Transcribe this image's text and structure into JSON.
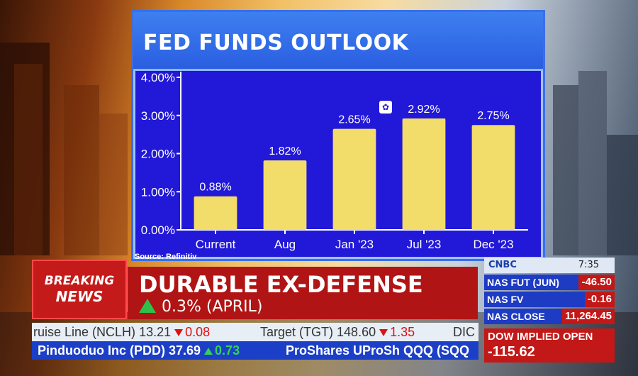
{
  "chart_data": {
    "type": "bar",
    "title": "FED FUNDS OUTLOOK",
    "categories": [
      "Current",
      "Aug",
      "Jan '23",
      "Jul '23",
      "Dec '23"
    ],
    "values": [
      0.88,
      1.82,
      2.65,
      2.92,
      2.75
    ],
    "value_labels": [
      "0.88%",
      "1.82%",
      "2.65%",
      "2.92%",
      "2.75%"
    ],
    "y_ticks": [
      0,
      1,
      2,
      3,
      4
    ],
    "y_tick_labels": [
      "0.00%",
      "1.00%",
      "2.00%",
      "3.00%",
      "4.00%"
    ],
    "ylim": [
      0,
      4
    ],
    "grid": false,
    "bar_color": "#f2dc6a",
    "background_color": "#2218d8"
  },
  "source": "Source: Refinitiv",
  "breaking": {
    "line1": "BREAKING",
    "line2": "NEWS"
  },
  "headline": {
    "title": "DURABLE EX-DEFENSE",
    "subtitle": "0.3% (APRIL)"
  },
  "ticker_top": {
    "items": [
      {
        "name": "ruise Line (NCLH)",
        "price": "13.21",
        "change": "0.08",
        "direction": "down"
      },
      {
        "name": "Target (TGT)",
        "price": "148.60",
        "change": "1.35",
        "direction": "down"
      },
      {
        "name": "DIC",
        "price": "",
        "change": "",
        "direction": ""
      }
    ]
  },
  "ticker_bottom": {
    "items": [
      {
        "name": "Pinduoduo Inc (PDD)",
        "price": "37.69",
        "change": "0.73",
        "direction": "up"
      },
      {
        "name": "ProShares UProSh QQQ (SQQ",
        "price": "",
        "change": "",
        "direction": ""
      }
    ]
  },
  "market": {
    "brand": "CNBC",
    "time": "7:35",
    "rows": [
      {
        "label": "NAS FUT (JUN)",
        "value": "-46.50"
      },
      {
        "label": "NAS FV",
        "value": "-0.16"
      },
      {
        "label": "NAS CLOSE",
        "value": "11,264.45"
      }
    ],
    "dow_label": "DOW IMPLIED OPEN",
    "dow_value": "-115.62"
  },
  "colors": {
    "breaking_red": "#c41a1a",
    "ticker_blue": "#1c3fc7",
    "up_green": "#34d25a",
    "down_red": "#dd1111"
  },
  "icons": {
    "network_logo": "peacock-icon",
    "up": "up-triangle-icon",
    "down": "down-triangle-icon"
  }
}
